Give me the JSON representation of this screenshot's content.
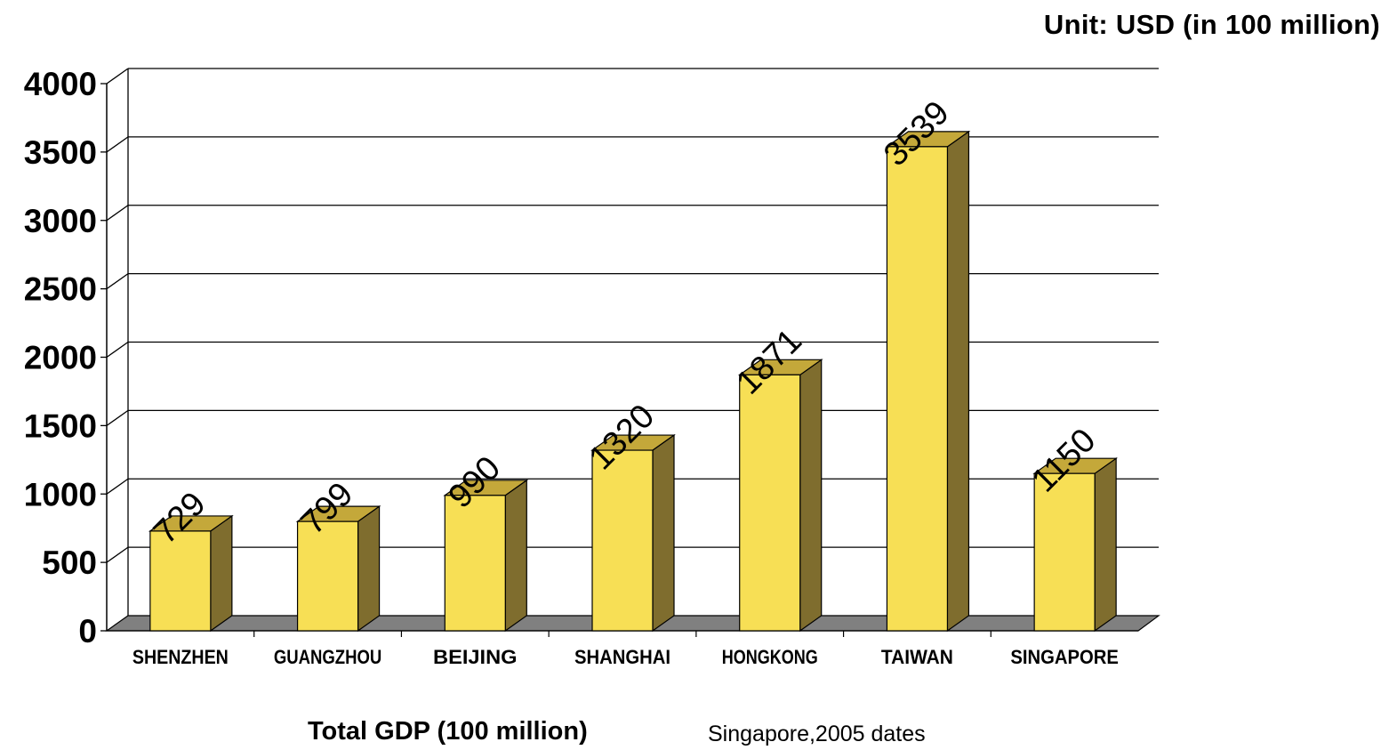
{
  "unit_label": "Unit: USD (in 100 million)",
  "footer": {
    "title": "Total GDP (100 million)",
    "note": "Singapore,2005 dates"
  },
  "colors": {
    "bar_front": "#F7DF55",
    "bar_side": "#7F6D2E",
    "bar_top": "#C4A83A",
    "floor": "#808080",
    "gridline": "#000000"
  },
  "chart_data": {
    "type": "bar",
    "categories": [
      "SHENZHEN",
      "GUANGZHOU",
      "BEIJING",
      "SHANGHAI",
      "HONGKONG",
      "TAIWAN",
      "SINGAPORE"
    ],
    "values": [
      729,
      799,
      990,
      1320,
      1871,
      3539,
      1150
    ],
    "value_labels": [
      "729",
      "799",
      "990",
      "1320",
      "1871",
      "3539",
      "1150"
    ],
    "y_ticks": [
      0,
      500,
      1000,
      1500,
      2000,
      2500,
      3000,
      3500,
      4000
    ],
    "ylim": [
      0,
      4000
    ],
    "grid": true,
    "style": "3d-column"
  }
}
